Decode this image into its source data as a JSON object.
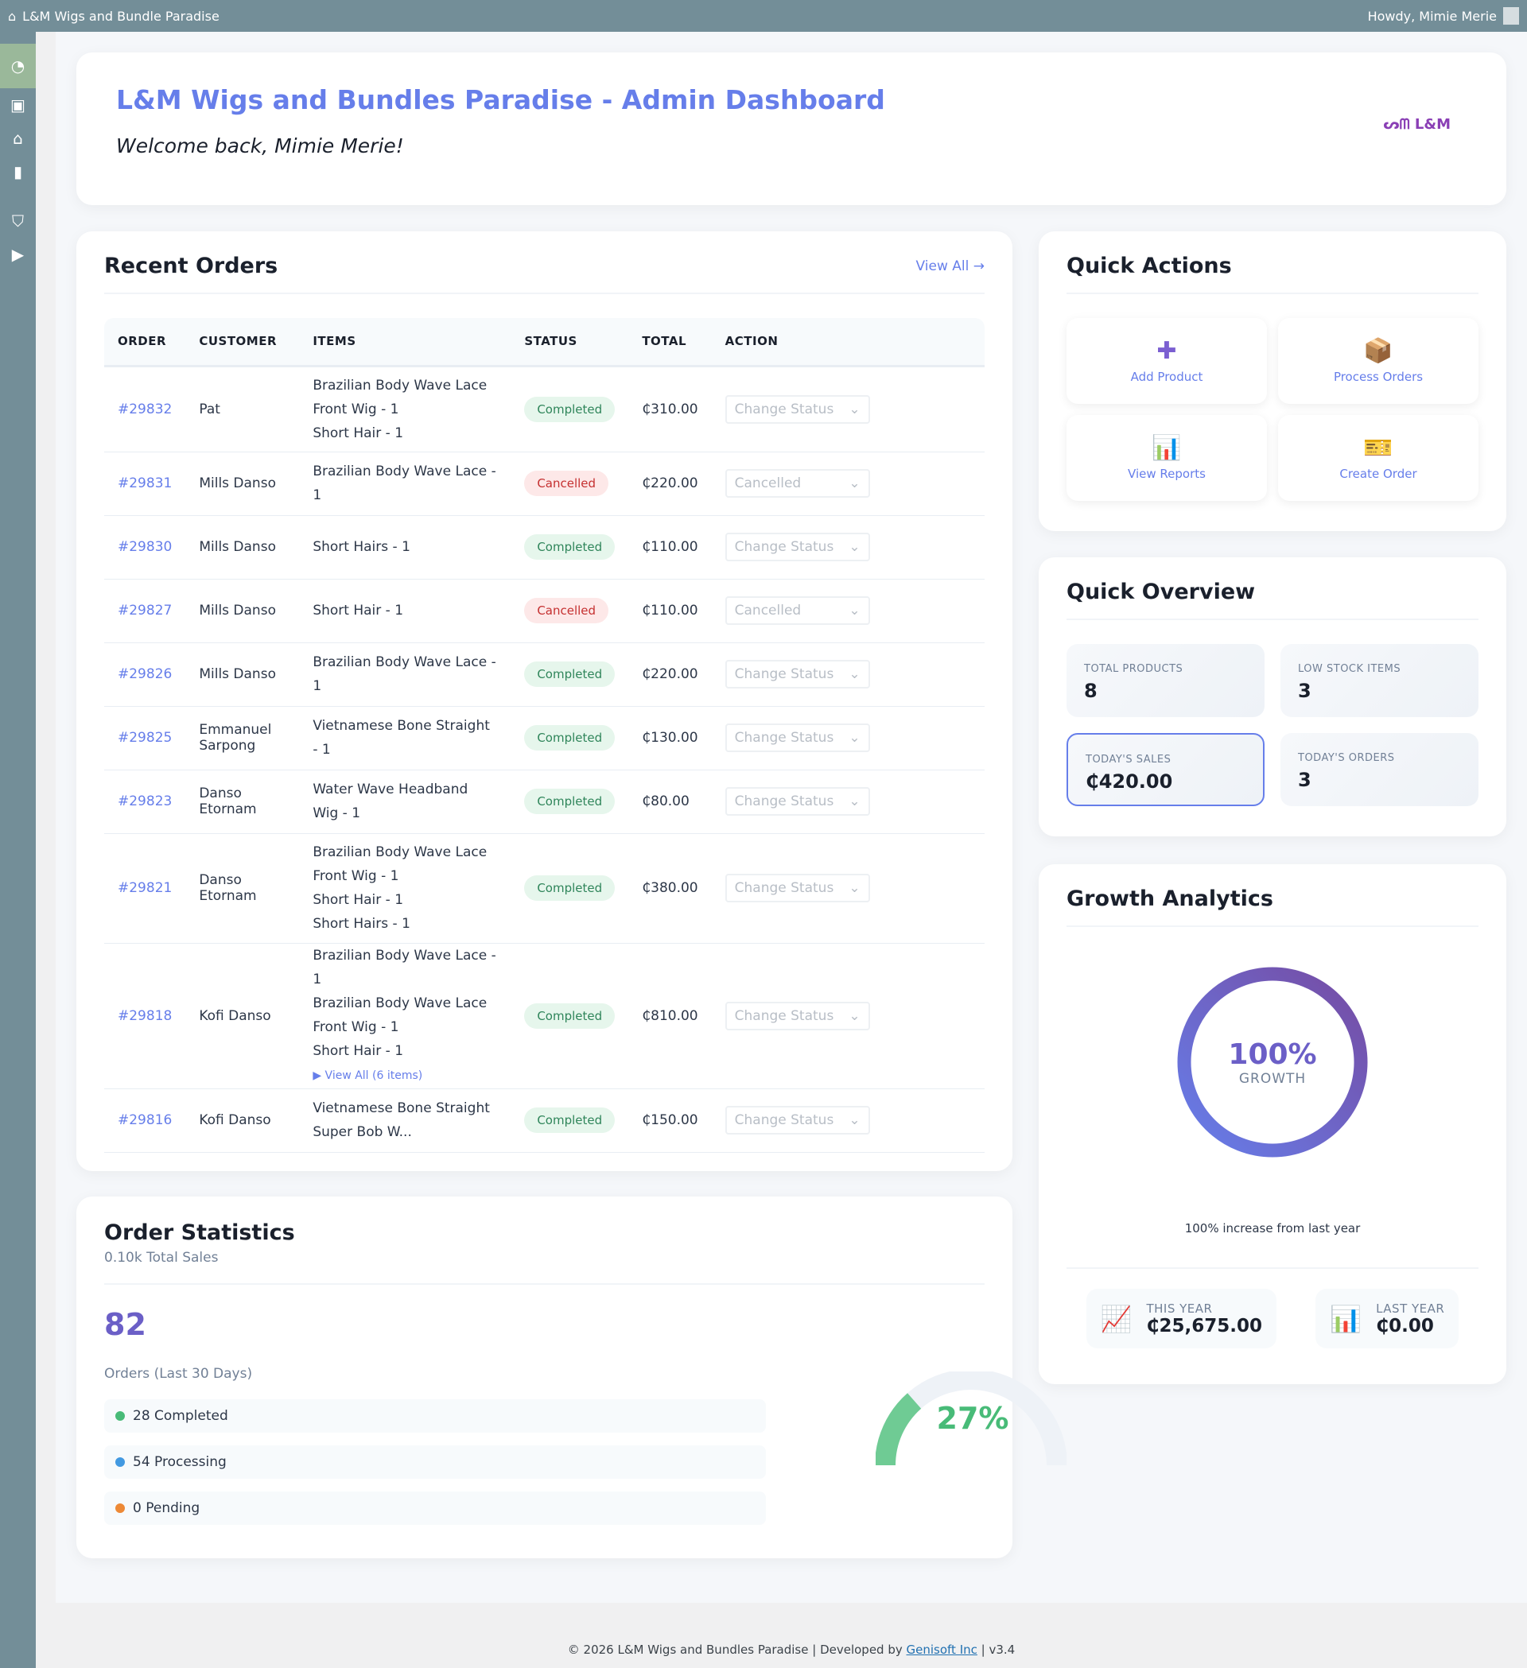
{
  "topbar": {
    "site_name": "L&M Wigs and Bundle Paradise",
    "greeting": "Howdy, Mimie Merie"
  },
  "header": {
    "title": "L&M Wigs and Bundles Paradise - Admin Dashboard",
    "welcome": "Welcome back, Mimie Merie!",
    "logo_text": "L&M"
  },
  "recent_orders": {
    "title": "Recent Orders",
    "view_all": "View All →",
    "columns": [
      "ORDER",
      "CUSTOMER",
      "ITEMS",
      "STATUS",
      "TOTAL",
      "ACTION"
    ],
    "rows": [
      {
        "order": "#29832",
        "customer": "Pat",
        "items": [
          "Brazilian Body Wave Lace Front Wig - 1",
          "Short Hair - 1"
        ],
        "status": "Completed",
        "total": "₵310.00",
        "action": "Change Status"
      },
      {
        "order": "#29831",
        "customer": "Mills Danso",
        "items": [
          "Brazilian Body Wave Lace - 1"
        ],
        "status": "Cancelled",
        "total": "₵220.00",
        "action": "Cancelled"
      },
      {
        "order": "#29830",
        "customer": "Mills Danso",
        "items": [
          "Short Hairs - 1"
        ],
        "status": "Completed",
        "total": "₵110.00",
        "action": "Change Status"
      },
      {
        "order": "#29827",
        "customer": "Mills Danso",
        "items": [
          "Short Hair - 1"
        ],
        "status": "Cancelled",
        "total": "₵110.00",
        "action": "Cancelled"
      },
      {
        "order": "#29826",
        "customer": "Mills Danso",
        "items": [
          "Brazilian Body Wave Lace - 1"
        ],
        "status": "Completed",
        "total": "₵220.00",
        "action": "Change Status"
      },
      {
        "order": "#29825",
        "customer": "Emmanuel Sarpong",
        "items": [
          "Vietnamese Bone Straight - 1"
        ],
        "status": "Completed",
        "total": "₵130.00",
        "action": "Change Status"
      },
      {
        "order": "#29823",
        "customer": "Danso Etornam",
        "items": [
          "Water Wave Headband Wig - 1"
        ],
        "status": "Completed",
        "total": "₵80.00",
        "action": "Change Status"
      },
      {
        "order": "#29821",
        "customer": "Danso Etornam",
        "items": [
          "Brazilian Body Wave Lace Front Wig - 1",
          "Short Hair - 1",
          "Short Hairs - 1"
        ],
        "status": "Completed",
        "total": "₵380.00",
        "action": "Change Status"
      },
      {
        "order": "#29818",
        "customer": "Kofi Danso",
        "items": [
          "Brazilian Body Wave Lace - 1",
          "Brazilian Body Wave Lace Front Wig - 1",
          "Short Hair - 1"
        ],
        "view_all": "▶ View All (6 items)",
        "status": "Completed",
        "total": "₵810.00",
        "action": "Change Status"
      },
      {
        "order": "#29816",
        "customer": "Kofi Danso",
        "items": [
          "Vietnamese Bone Straight Super Bob W..."
        ],
        "status": "Completed",
        "total": "₵150.00",
        "action": "Change Status"
      }
    ]
  },
  "order_stats": {
    "title": "Order Statistics",
    "subtitle": "0.10k Total Sales",
    "count": "82",
    "count_label": "Orders (Last 30 Days)",
    "rows": [
      {
        "label": "28 Completed",
        "color": "#48bb78"
      },
      {
        "label": "54 Processing",
        "color": "#4299e1"
      },
      {
        "label": "0 Pending",
        "color": "#ed8936"
      }
    ],
    "gauge_label": "27%",
    "gauge_value": 27
  },
  "quick_actions": {
    "title": "Quick Actions",
    "items": [
      {
        "label": "Add Product",
        "icon": "plus-icon"
      },
      {
        "label": "Process Orders",
        "icon": "package-icon"
      },
      {
        "label": "View Reports",
        "icon": "bar-chart-icon"
      },
      {
        "label": "Create Order",
        "icon": "ticket-icon"
      }
    ]
  },
  "overview": {
    "title": "Quick Overview",
    "items": [
      {
        "label": "TOTAL PRODUCTS",
        "value": "8"
      },
      {
        "label": "LOW STOCK ITEMS",
        "value": "3"
      },
      {
        "label": "TODAY'S SALES",
        "value": "₵420.00"
      },
      {
        "label": "TODAY'S ORDERS",
        "value": "3"
      }
    ]
  },
  "growth": {
    "title": "Growth Analytics",
    "percent": "100%",
    "percent_label": "GROWTH",
    "note": "100% increase from last year",
    "this_year_label": "THIS YEAR",
    "this_year": "₵25,675.00",
    "last_year_label": "LAST YEAR",
    "last_year": "₵0.00"
  },
  "footer": {
    "text": "© 2026 L&M Wigs and Bundles Paradise | Developed by ",
    "link": "Genisoft Inc",
    "version": " | v3.4"
  },
  "colors": {
    "accent": "#667eea",
    "topbar": "#738e98"
  }
}
